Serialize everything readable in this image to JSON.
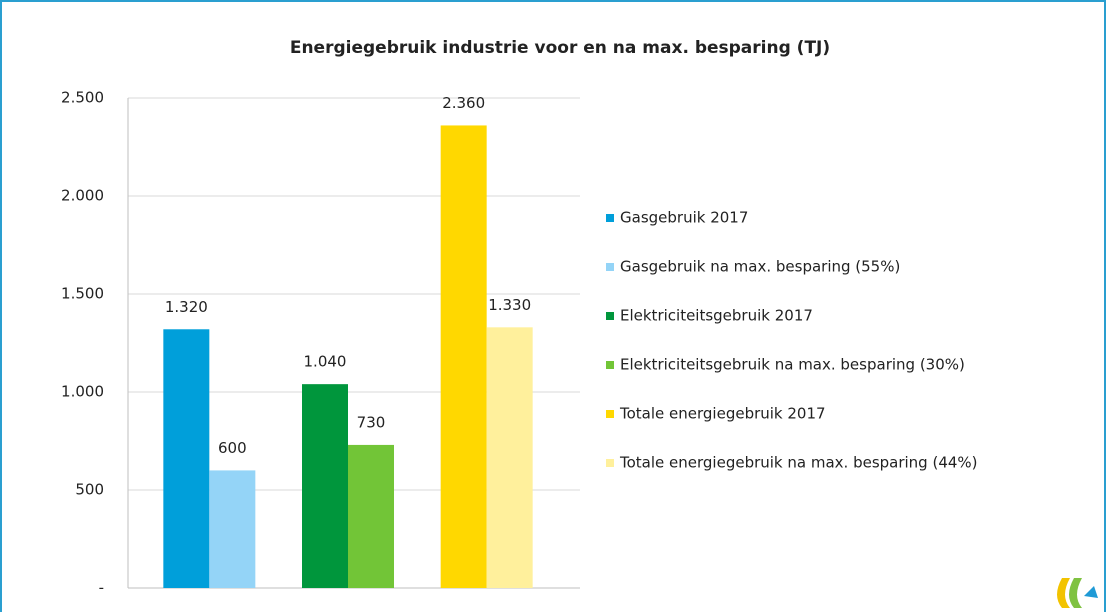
{
  "chart_data": {
    "type": "bar",
    "title": "Energiegebruik industrie voor en na max. besparing (TJ)",
    "categories": [
      null,
      null,
      null
    ],
    "series": [
      {
        "name": "Gasgebruik 2017",
        "color": "#009fda",
        "values": [
          1320,
          null,
          null
        ],
        "value_labels": [
          "1.320",
          null,
          null
        ]
      },
      {
        "name": "Gasgebruik na max. besparing (55%)",
        "color": "#94d4f7",
        "values": [
          600,
          null,
          null
        ],
        "value_labels": [
          "600",
          null,
          null
        ]
      },
      {
        "name": "Elektriciteitsgebruik 2017",
        "color": "#00963c",
        "values": [
          null,
          1040,
          null
        ],
        "value_labels": [
          null,
          "1.040",
          null
        ]
      },
      {
        "name": "Elektriciteitsgebruik na max. besparing (30%)",
        "color": "#72c537",
        "values": [
          null,
          730,
          null
        ],
        "value_labels": [
          null,
          "730",
          null
        ]
      },
      {
        "name": "Totale energiegebruik 2017",
        "color": "#ffd800",
        "values": [
          null,
          null,
          2360
        ],
        "value_labels": [
          null,
          null,
          "2.360"
        ]
      },
      {
        "name": "Totale energiegebruik na max. besparing (44%)",
        "color": "#fff09c",
        "values": [
          null,
          null,
          1330
        ],
        "value_labels": [
          null,
          null,
          "1.330"
        ]
      }
    ],
    "ylim": [
      0,
      2500
    ],
    "yticks": [
      {
        "value": 0,
        "label": "-"
      },
      500,
      {
        "value": 1000,
        "label": "1.000"
      },
      {
        "value": 1500,
        "label": "1.500"
      },
      {
        "value": 2000,
        "label": "2.000"
      },
      {
        "value": 2500,
        "label": "2.500"
      }
    ],
    "grid": true,
    "legend": "right"
  }
}
